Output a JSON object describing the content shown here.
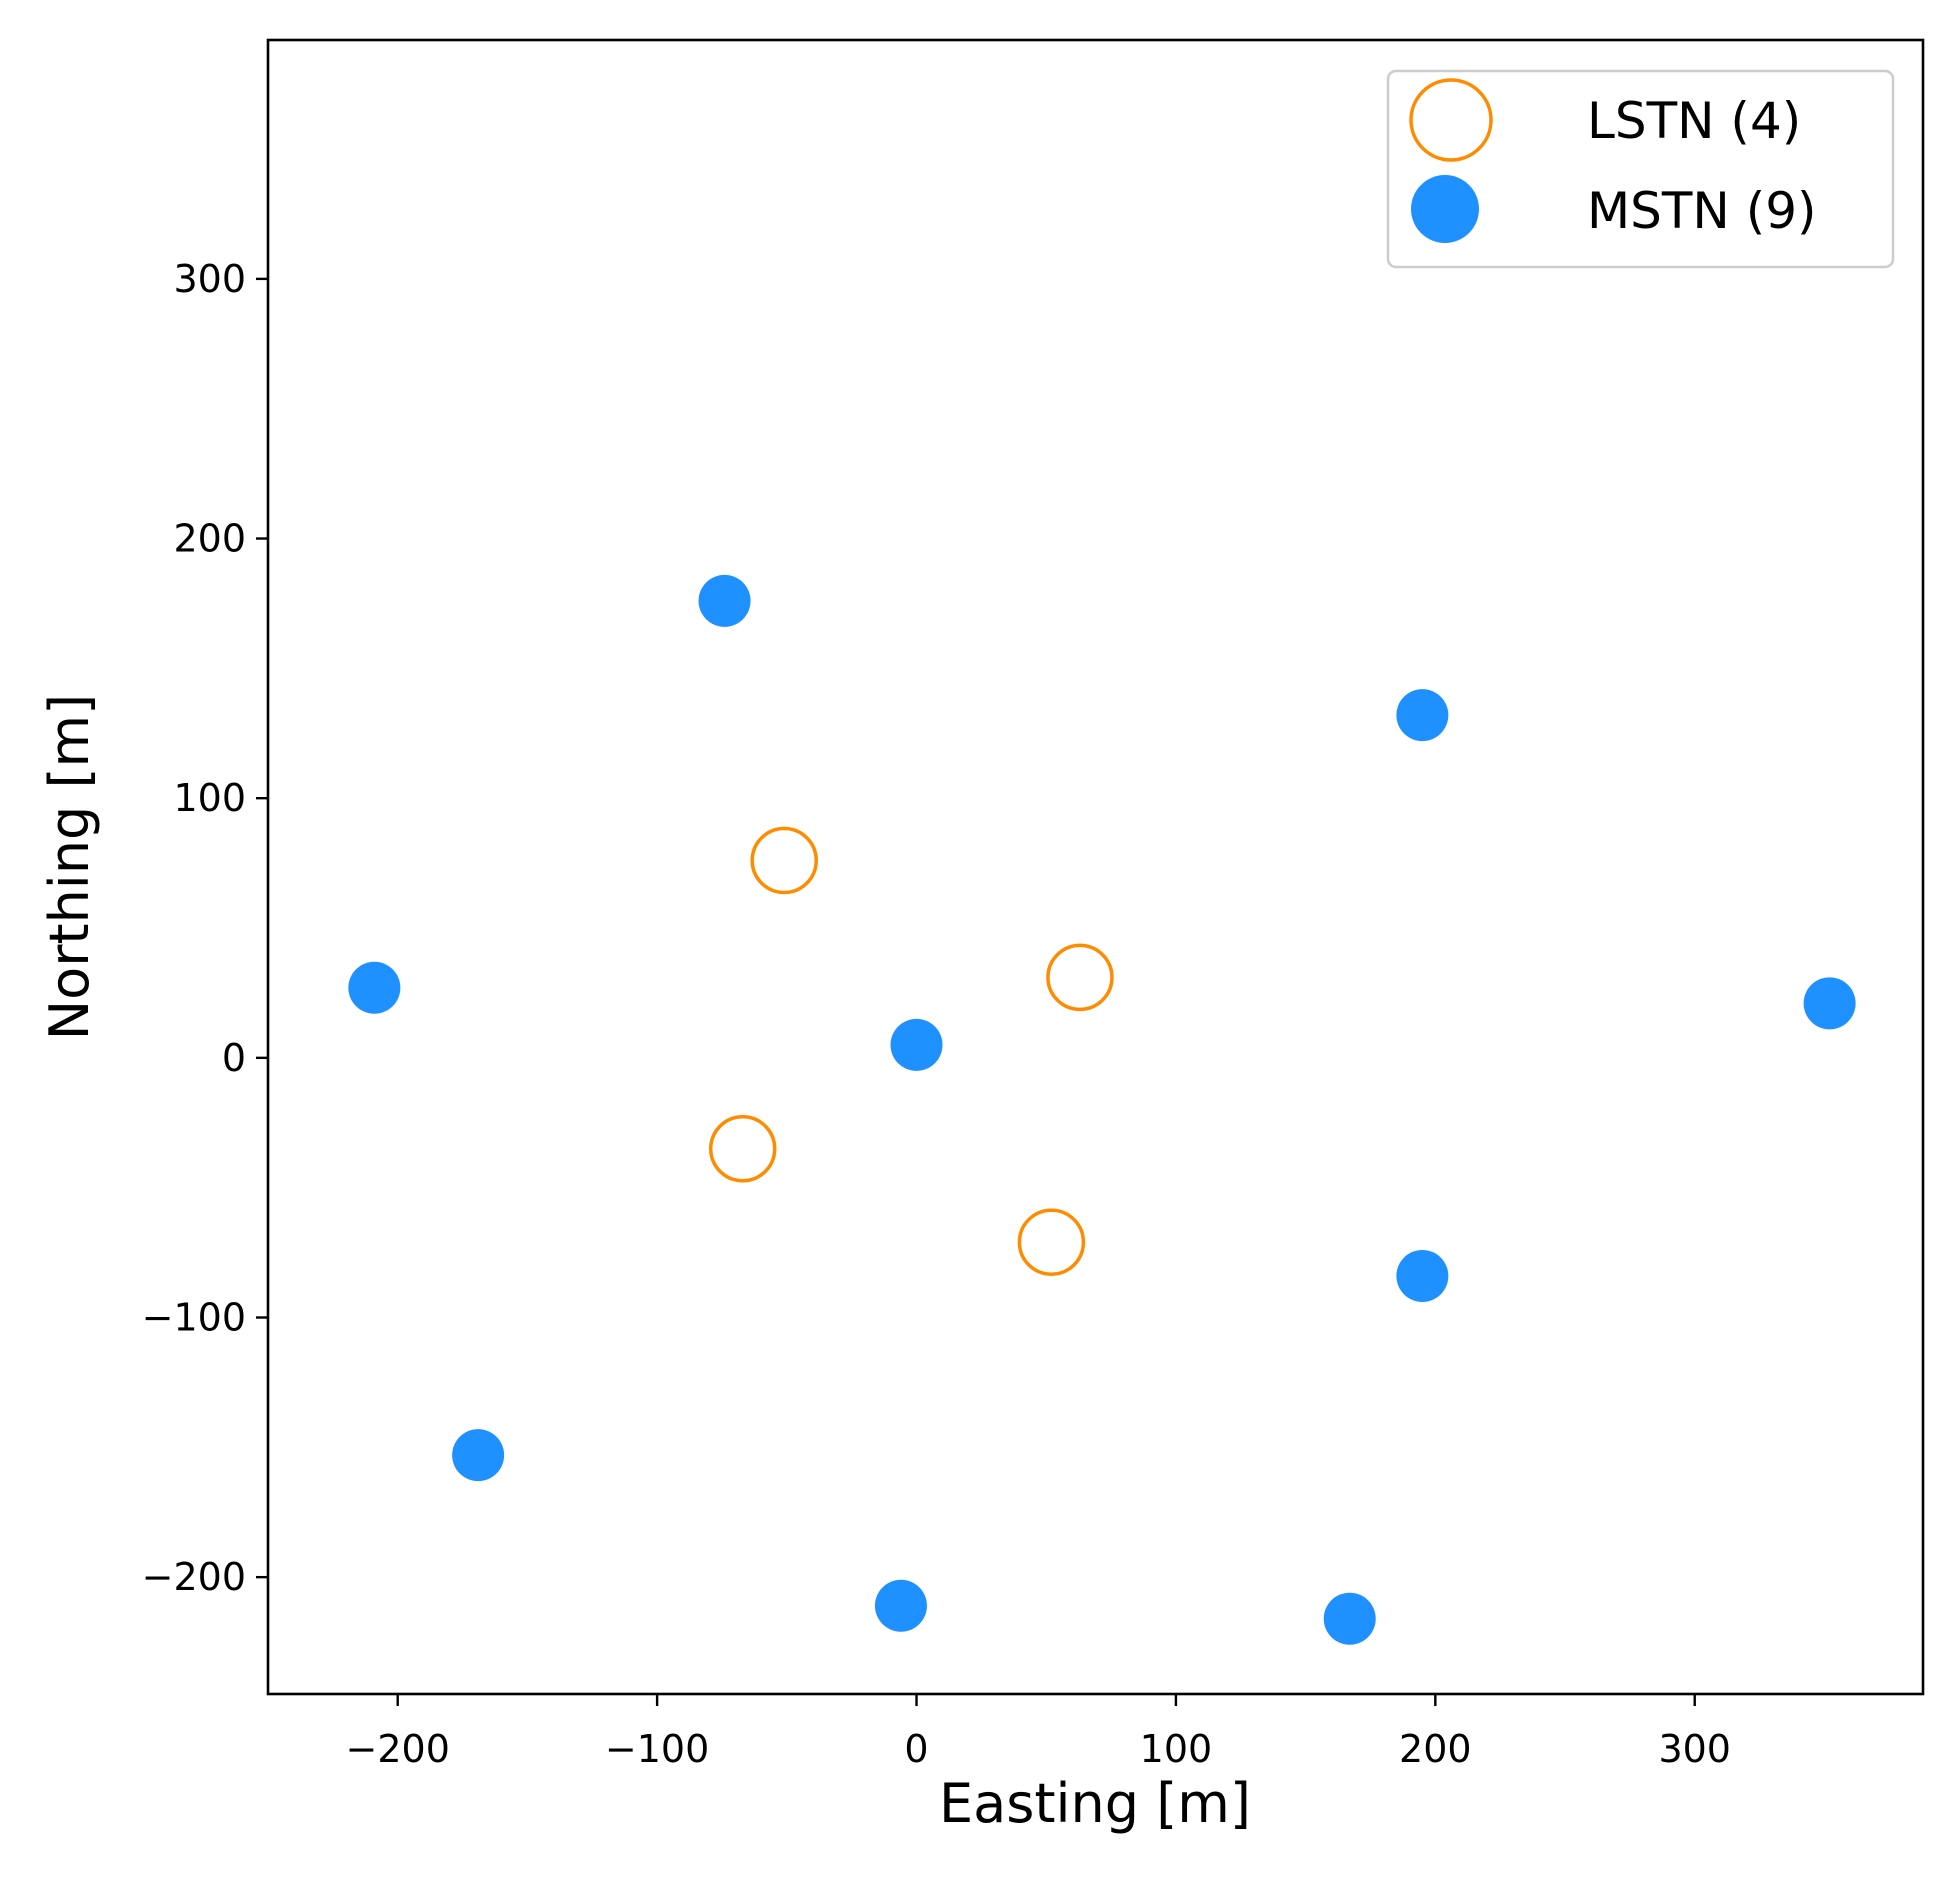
{
  "chart_data": {
    "type": "scatter",
    "title": "",
    "xlabel": "Easting [m]",
    "ylabel": "Northing [m]",
    "xlim": [
      -250,
      388
    ],
    "ylim": [
      -245,
      392
    ],
    "xticks": [
      -200,
      -100,
      0,
      100,
      200,
      300
    ],
    "yticks": [
      -200,
      -100,
      0,
      100,
      200,
      300
    ],
    "xtick_labels": [
      "−200",
      "−100",
      "0",
      "100",
      "200",
      "300"
    ],
    "ytick_labels": [
      "−200",
      "−100",
      "0",
      "100",
      "200",
      "300"
    ],
    "grid": false,
    "legend_position": "top-right",
    "series": [
      {
        "name": "LSTN (4)",
        "marker": "hollow-circle",
        "color": "#ff8c00",
        "points": [
          {
            "x": -51,
            "y": 76
          },
          {
            "x": 63,
            "y": 31
          },
          {
            "x": -67,
            "y": -35
          },
          {
            "x": 52,
            "y": -71
          }
        ]
      },
      {
        "name": "MSTN (9)",
        "marker": "filled-circle",
        "color": "#1e90ff",
        "points": [
          {
            "x": -74,
            "y": 176
          },
          {
            "x": 195,
            "y": 132
          },
          {
            "x": -209,
            "y": 27
          },
          {
            "x": 0,
            "y": 5
          },
          {
            "x": 352,
            "y": 21
          },
          {
            "x": 195,
            "y": -84
          },
          {
            "x": -169,
            "y": -153
          },
          {
            "x": -6,
            "y": -211
          },
          {
            "x": 167,
            "y": -216
          }
        ]
      }
    ]
  }
}
